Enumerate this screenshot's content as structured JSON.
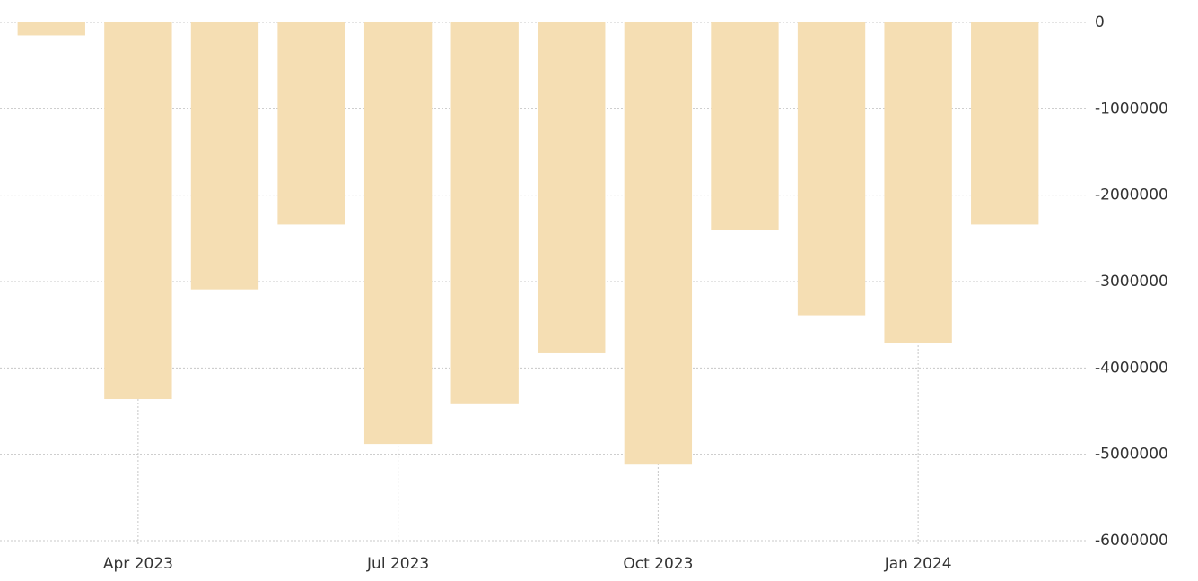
{
  "chart_data": {
    "type": "bar",
    "categories": [
      null,
      "Apr 2023",
      null,
      null,
      "Jul 2023",
      null,
      null,
      "Oct 2023",
      null,
      null,
      "Jan 2024",
      null
    ],
    "values": [
      -150000,
      -4360000,
      -3090000,
      -2340000,
      -4880000,
      -4420000,
      -3830000,
      -5120000,
      -2400000,
      -3390000,
      -3710000,
      -2340000
    ],
    "color": "#f5deb3",
    "ylim": [
      -6000000,
      0
    ],
    "yticks": [
      0,
      -1000000,
      -2000000,
      -3000000,
      -4000000,
      -5000000,
      -6000000
    ],
    "grid": true
  }
}
